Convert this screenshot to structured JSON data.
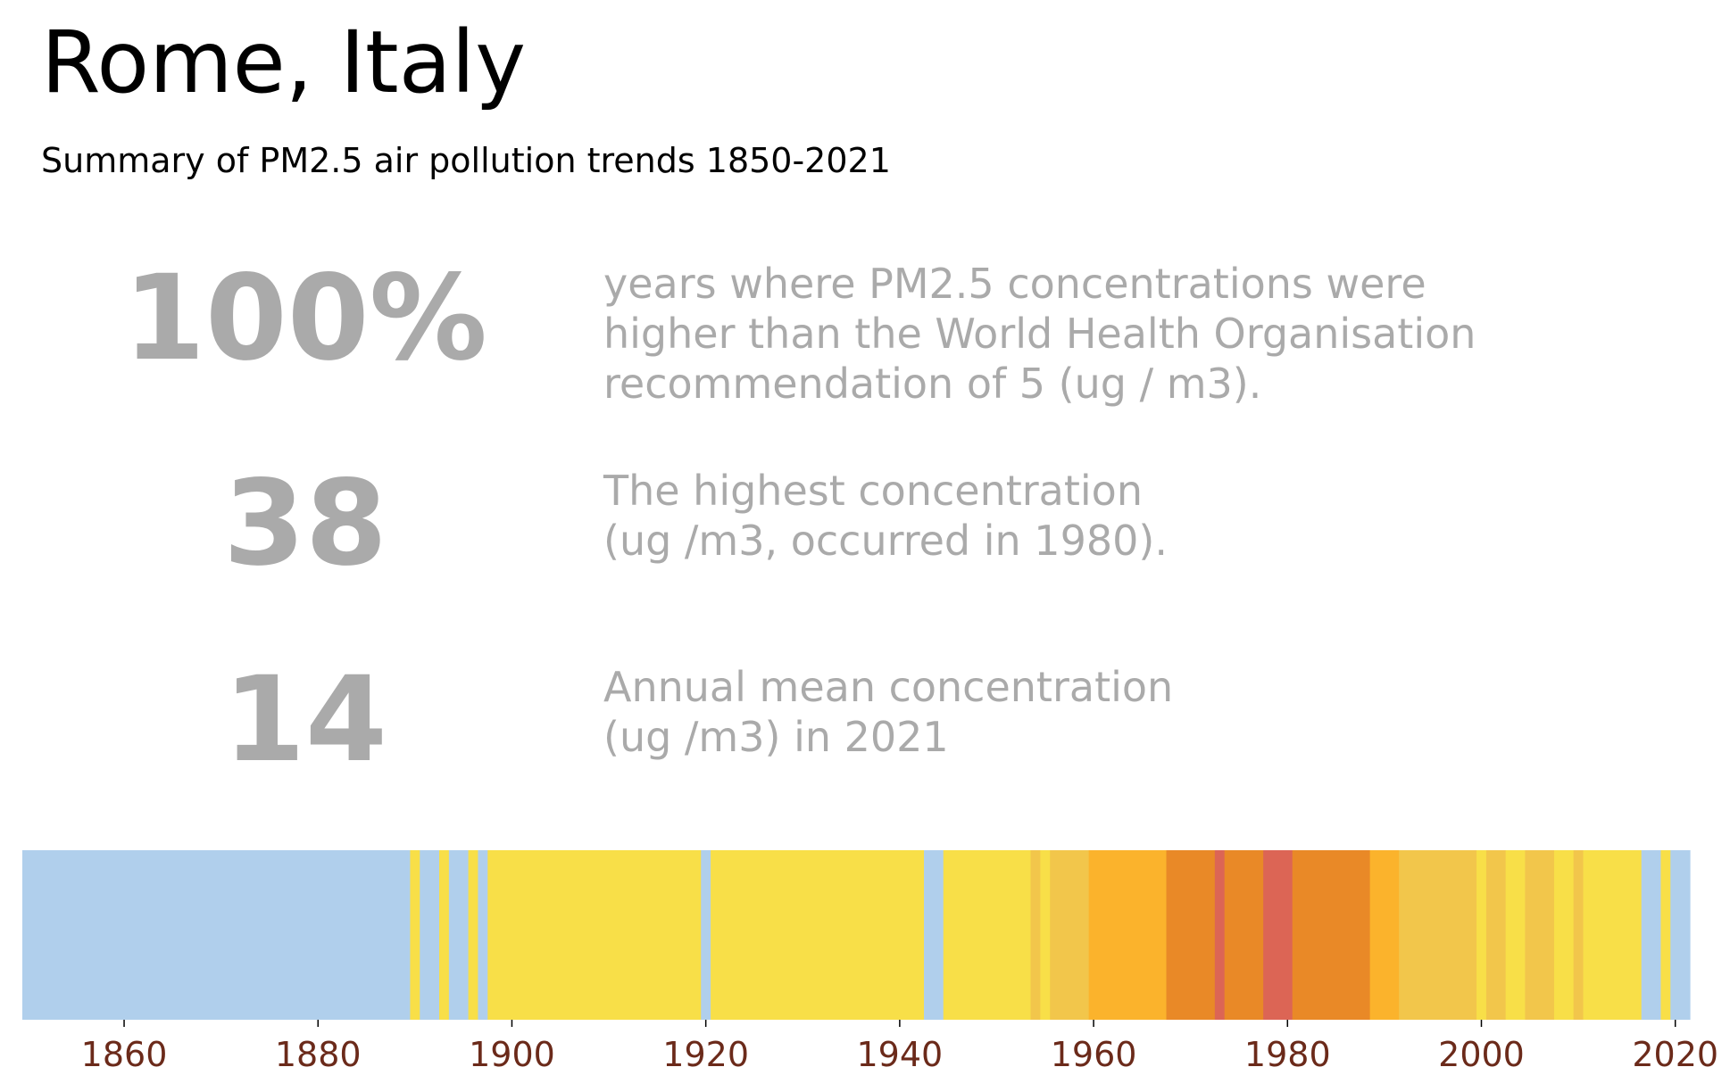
{
  "title": "Rome, Italy",
  "subtitle": "Summary of PM2.5 air pollution trends 1850-2021",
  "stats": [
    {
      "value": "100%",
      "text": "years where PM2.5 concentrations were\nhigher than the World Health Organisation\nrecommendation of 5 (ug / m3)."
    },
    {
      "value": "38",
      "text": "The highest concentration\n(ug /m3, occurred in 1980)."
    },
    {
      "value": "14",
      "text": "Annual mean concentration\n(ug /m3) in 2021"
    }
  ],
  "colors": {
    "light_blue": "#b0cfec",
    "yellow": "#f8df48",
    "gold": "#f2c64b",
    "amber": "#fbb32c",
    "orange": "#e98927",
    "red": "#dc6555",
    "tick_label": "#6b2a1a"
  },
  "chart_data": {
    "type": "heatmap",
    "title": "",
    "x_range": [
      1850,
      2022
    ],
    "xticks": [
      1860,
      1880,
      1900,
      1920,
      1940,
      1960,
      1980,
      2000,
      2020
    ],
    "segments": [
      {
        "start": 1850,
        "end": 1890,
        "color": "light_blue"
      },
      {
        "start": 1890,
        "end": 1891,
        "color": "yellow"
      },
      {
        "start": 1891,
        "end": 1893,
        "color": "light_blue"
      },
      {
        "start": 1893,
        "end": 1894,
        "color": "yellow"
      },
      {
        "start": 1894,
        "end": 1896,
        "color": "light_blue"
      },
      {
        "start": 1896,
        "end": 1897,
        "color": "yellow"
      },
      {
        "start": 1897,
        "end": 1898,
        "color": "light_blue"
      },
      {
        "start": 1898,
        "end": 1920,
        "color": "yellow"
      },
      {
        "start": 1920,
        "end": 1921,
        "color": "light_blue"
      },
      {
        "start": 1921,
        "end": 1943,
        "color": "yellow"
      },
      {
        "start": 1943,
        "end": 1945,
        "color": "light_blue"
      },
      {
        "start": 1945,
        "end": 1954,
        "color": "yellow"
      },
      {
        "start": 1954,
        "end": 1955,
        "color": "gold"
      },
      {
        "start": 1955,
        "end": 1956,
        "color": "yellow"
      },
      {
        "start": 1956,
        "end": 1960,
        "color": "gold"
      },
      {
        "start": 1960,
        "end": 1968,
        "color": "amber"
      },
      {
        "start": 1968,
        "end": 1973,
        "color": "orange"
      },
      {
        "start": 1973,
        "end": 1974,
        "color": "red"
      },
      {
        "start": 1974,
        "end": 1978,
        "color": "orange"
      },
      {
        "start": 1978,
        "end": 1981,
        "color": "red"
      },
      {
        "start": 1981,
        "end": 1989,
        "color": "orange"
      },
      {
        "start": 1989,
        "end": 1992,
        "color": "amber"
      },
      {
        "start": 1992,
        "end": 2000,
        "color": "gold"
      },
      {
        "start": 2000,
        "end": 2001,
        "color": "yellow"
      },
      {
        "start": 2001,
        "end": 2003,
        "color": "gold"
      },
      {
        "start": 2003,
        "end": 2005,
        "color": "yellow"
      },
      {
        "start": 2005,
        "end": 2008,
        "color": "gold"
      },
      {
        "start": 2008,
        "end": 2010,
        "color": "yellow"
      },
      {
        "start": 2010,
        "end": 2011,
        "color": "gold"
      },
      {
        "start": 2011,
        "end": 2017,
        "color": "yellow"
      },
      {
        "start": 2017,
        "end": 2019,
        "color": "light_blue"
      },
      {
        "start": 2019,
        "end": 2020,
        "color": "yellow"
      },
      {
        "start": 2020,
        "end": 2022,
        "color": "light_blue"
      }
    ]
  }
}
